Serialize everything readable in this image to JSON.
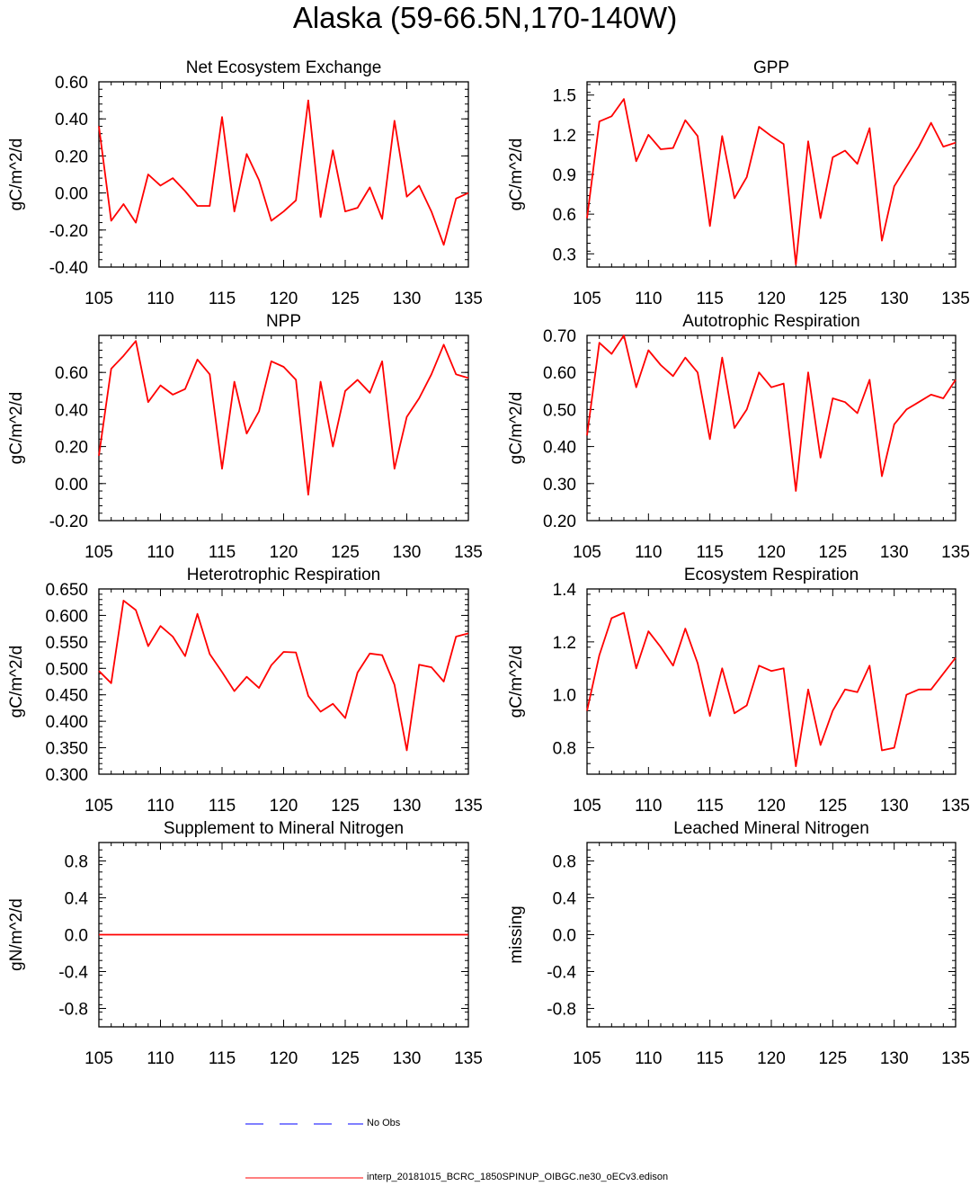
{
  "title": "Alaska (59-66.5N,170-140W)",
  "colors": {
    "model": "#ff0000",
    "obs": "#0000ff",
    "axis": "#000000"
  },
  "legend": {
    "obs_label": "No Obs",
    "model_label": "interp_20181015_BCRC_1850SPINUP_OIBGC.ne30_oECv3.edison"
  },
  "chart_data": [
    {
      "type": "line",
      "title": "Net Ecosystem Exchange",
      "ylabel": "gC/m^2/d",
      "xlim": [
        105,
        135
      ],
      "ylim": [
        -0.4,
        0.6
      ],
      "yticks": [
        -0.4,
        -0.2,
        0.0,
        0.2,
        0.4,
        0.6
      ],
      "ytick_labels": [
        "-0.40",
        "-0.20",
        "0.00",
        "0.20",
        "0.40",
        "0.60"
      ],
      "xticks": [
        105,
        110,
        115,
        120,
        125,
        130,
        135
      ],
      "xtick_labels": [
        "105",
        "110",
        "115",
        "120",
        "125",
        "130",
        "135"
      ],
      "x": [
        105,
        106,
        107,
        108,
        109,
        110,
        111,
        112,
        113,
        114,
        115,
        116,
        117,
        118,
        119,
        120,
        121,
        122,
        123,
        124,
        125,
        126,
        127,
        128,
        129,
        130,
        131,
        132,
        133,
        134,
        135
      ],
      "series": [
        {
          "name": "interp_20181015_BCRC_1850SPINUP_OIBGC.ne30_oECv3.edison",
          "values": [
            0.36,
            -0.15,
            -0.06,
            -0.16,
            0.1,
            0.04,
            0.08,
            0.01,
            -0.07,
            -0.07,
            0.41,
            -0.1,
            0.21,
            0.07,
            -0.15,
            -0.1,
            -0.04,
            0.5,
            -0.13,
            0.23,
            -0.1,
            -0.08,
            0.03,
            -0.14,
            0.39,
            -0.02,
            0.04,
            -0.1,
            -0.28,
            -0.03,
            0.0
          ]
        }
      ]
    },
    {
      "type": "line",
      "title": "GPP",
      "ylabel": "gC/m^2/d",
      "xlim": [
        105,
        135
      ],
      "ylim": [
        0.2,
        1.6
      ],
      "yticks": [
        0.3,
        0.6,
        0.9,
        1.2,
        1.5
      ],
      "ytick_labels": [
        "0.3",
        "0.6",
        "0.9",
        "1.2",
        "1.5"
      ],
      "xticks": [
        105,
        110,
        115,
        120,
        125,
        130,
        135
      ],
      "xtick_labels": [
        "105",
        "110",
        "115",
        "120",
        "125",
        "130",
        "135"
      ],
      "x": [
        105,
        106,
        107,
        108,
        109,
        110,
        111,
        112,
        113,
        114,
        115,
        116,
        117,
        118,
        119,
        120,
        121,
        122,
        123,
        124,
        125,
        126,
        127,
        128,
        129,
        130,
        131,
        132,
        133,
        134,
        135
      ],
      "series": [
        {
          "name": "interp_20181015_BCRC_1850SPINUP_OIBGC.ne30_oECv3.edison",
          "values": [
            0.57,
            1.3,
            1.34,
            1.47,
            1.0,
            1.2,
            1.09,
            1.1,
            1.31,
            1.19,
            0.51,
            1.19,
            0.72,
            0.88,
            1.26,
            1.19,
            1.13,
            0.22,
            1.15,
            0.57,
            1.03,
            1.08,
            0.98,
            1.25,
            0.4,
            0.81,
            0.96,
            1.11,
            1.29,
            1.11,
            1.14
          ]
        }
      ]
    },
    {
      "type": "line",
      "title": "NPP",
      "ylabel": "gC/m^2/d",
      "xlim": [
        105,
        135
      ],
      "ylim": [
        -0.2,
        0.8
      ],
      "yticks": [
        -0.2,
        0.0,
        0.2,
        0.4,
        0.6
      ],
      "ytick_labels": [
        "-0.20",
        "0.00",
        "0.20",
        "0.40",
        "0.60"
      ],
      "xticks": [
        105,
        110,
        115,
        120,
        125,
        130,
        135
      ],
      "xtick_labels": [
        "105",
        "110",
        "115",
        "120",
        "125",
        "130",
        "135"
      ],
      "x": [
        105,
        106,
        107,
        108,
        109,
        110,
        111,
        112,
        113,
        114,
        115,
        116,
        117,
        118,
        119,
        120,
        121,
        122,
        123,
        124,
        125,
        126,
        127,
        128,
        129,
        130,
        131,
        132,
        133,
        134,
        135
      ],
      "series": [
        {
          "name": "interp_20181015_BCRC_1850SPINUP_OIBGC.ne30_oECv3.edison",
          "values": [
            0.15,
            0.62,
            0.69,
            0.77,
            0.44,
            0.53,
            0.48,
            0.51,
            0.67,
            0.59,
            0.08,
            0.55,
            0.27,
            0.39,
            0.66,
            0.63,
            0.56,
            -0.06,
            0.55,
            0.2,
            0.5,
            0.56,
            0.49,
            0.66,
            0.08,
            0.36,
            0.46,
            0.59,
            0.75,
            0.59,
            0.57
          ]
        }
      ]
    },
    {
      "type": "line",
      "title": "Autotrophic Respiration",
      "ylabel": "gC/m^2/d",
      "xlim": [
        105,
        135
      ],
      "ylim": [
        0.2,
        0.7
      ],
      "yticks": [
        0.2,
        0.3,
        0.4,
        0.5,
        0.6,
        0.7
      ],
      "ytick_labels": [
        "0.20",
        "0.30",
        "0.40",
        "0.50",
        "0.60",
        "0.70"
      ],
      "xticks": [
        105,
        110,
        115,
        120,
        125,
        130,
        135
      ],
      "xtick_labels": [
        "105",
        "110",
        "115",
        "120",
        "125",
        "130",
        "135"
      ],
      "x": [
        105,
        106,
        107,
        108,
        109,
        110,
        111,
        112,
        113,
        114,
        115,
        116,
        117,
        118,
        119,
        120,
        121,
        122,
        123,
        124,
        125,
        126,
        127,
        128,
        129,
        130,
        131,
        132,
        133,
        134,
        135
      ],
      "series": [
        {
          "name": "interp_20181015_BCRC_1850SPINUP_OIBGC.ne30_oECv3.edison",
          "values": [
            0.43,
            0.68,
            0.65,
            0.7,
            0.56,
            0.66,
            0.62,
            0.59,
            0.64,
            0.6,
            0.42,
            0.64,
            0.45,
            0.5,
            0.6,
            0.56,
            0.57,
            0.28,
            0.6,
            0.37,
            0.53,
            0.52,
            0.49,
            0.58,
            0.32,
            0.46,
            0.5,
            0.52,
            0.54,
            0.53,
            0.58
          ]
        }
      ]
    },
    {
      "type": "line",
      "title": "Heterotrophic Respiration",
      "ylabel": "gC/m^2/d",
      "xlim": [
        105,
        135
      ],
      "ylim": [
        0.3,
        0.65
      ],
      "yticks": [
        0.3,
        0.35,
        0.4,
        0.45,
        0.5,
        0.55,
        0.6,
        0.65
      ],
      "ytick_labels": [
        "0.300",
        "0.350",
        "0.400",
        "0.450",
        "0.500",
        "0.550",
        "0.600",
        "0.650"
      ],
      "xticks": [
        105,
        110,
        115,
        120,
        125,
        130,
        135
      ],
      "xtick_labels": [
        "105",
        "110",
        "115",
        "120",
        "125",
        "130",
        "135"
      ],
      "x": [
        105,
        106,
        107,
        108,
        109,
        110,
        111,
        112,
        113,
        114,
        115,
        116,
        117,
        118,
        119,
        120,
        121,
        122,
        123,
        124,
        125,
        126,
        127,
        128,
        129,
        130,
        131,
        132,
        133,
        134,
        135
      ],
      "series": [
        {
          "name": "interp_20181015_BCRC_1850SPINUP_OIBGC.ne30_oECv3.edison",
          "values": [
            0.495,
            0.472,
            0.628,
            0.61,
            0.542,
            0.58,
            0.56,
            0.523,
            0.603,
            0.527,
            0.493,
            0.457,
            0.484,
            0.463,
            0.506,
            0.531,
            0.53,
            0.448,
            0.418,
            0.433,
            0.406,
            0.492,
            0.528,
            0.525,
            0.469,
            0.345,
            0.507,
            0.502,
            0.475,
            0.56,
            0.566
          ]
        }
      ]
    },
    {
      "type": "line",
      "title": "Ecosystem Respiration",
      "ylabel": "gC/m^2/d",
      "xlim": [
        105,
        135
      ],
      "ylim": [
        0.7,
        1.4
      ],
      "yticks": [
        0.8,
        1.0,
        1.2,
        1.4
      ],
      "ytick_labels": [
        "0.8",
        "1.0",
        "1.2",
        "1.4"
      ],
      "xticks": [
        105,
        110,
        115,
        120,
        125,
        130,
        135
      ],
      "xtick_labels": [
        "105",
        "110",
        "115",
        "120",
        "125",
        "130",
        "135"
      ],
      "x": [
        105,
        106,
        107,
        108,
        109,
        110,
        111,
        112,
        113,
        114,
        115,
        116,
        117,
        118,
        119,
        120,
        121,
        122,
        123,
        124,
        125,
        126,
        127,
        128,
        129,
        130,
        131,
        132,
        133,
        134,
        135
      ],
      "series": [
        {
          "name": "interp_20181015_BCRC_1850SPINUP_OIBGC.ne30_oECv3.edison",
          "values": [
            0.94,
            1.15,
            1.29,
            1.31,
            1.1,
            1.24,
            1.18,
            1.11,
            1.25,
            1.12,
            0.92,
            1.1,
            0.93,
            0.96,
            1.11,
            1.09,
            1.1,
            0.73,
            1.02,
            0.81,
            0.94,
            1.02,
            1.01,
            1.11,
            0.79,
            0.8,
            1.0,
            1.02,
            1.02,
            1.08,
            1.14
          ]
        }
      ]
    },
    {
      "type": "line",
      "title": "Supplement to Mineral Nitrogen",
      "ylabel": "gN/m^2/d",
      "xlim": [
        105,
        135
      ],
      "ylim": [
        -1.0,
        1.0
      ],
      "yticks": [
        -0.8,
        -0.4,
        0.0,
        0.4,
        0.8
      ],
      "ytick_labels": [
        "-0.8",
        "-0.4",
        "0.0",
        "0.4",
        "0.8"
      ],
      "xticks": [
        105,
        110,
        115,
        120,
        125,
        130,
        135
      ],
      "xtick_labels": [
        "105",
        "110",
        "115",
        "120",
        "125",
        "130",
        "135"
      ],
      "x": [
        105,
        106,
        107,
        108,
        109,
        110,
        111,
        112,
        113,
        114,
        115,
        116,
        117,
        118,
        119,
        120,
        121,
        122,
        123,
        124,
        125,
        126,
        127,
        128,
        129,
        130,
        131,
        132,
        133,
        134,
        135
      ],
      "series": [
        {
          "name": "interp_20181015_BCRC_1850SPINUP_OIBGC.ne30_oECv3.edison",
          "values": [
            0,
            0,
            0,
            0,
            0,
            0,
            0,
            0,
            0,
            0,
            0,
            0,
            0,
            0,
            0,
            0,
            0,
            0,
            0,
            0,
            0,
            0,
            0,
            0,
            0,
            0,
            0,
            0,
            0,
            0,
            0
          ]
        }
      ]
    },
    {
      "type": "line",
      "title": "Leached Mineral Nitrogen",
      "ylabel": "missing",
      "xlim": [
        105,
        135
      ],
      "ylim": [
        -1.0,
        1.0
      ],
      "yticks": [
        -0.8,
        -0.4,
        0.0,
        0.4,
        0.8
      ],
      "ytick_labels": [
        "-0.8",
        "-0.4",
        "0.0",
        "0.4",
        "0.8"
      ],
      "xticks": [
        105,
        110,
        115,
        120,
        125,
        130,
        135
      ],
      "xtick_labels": [
        "105",
        "110",
        "115",
        "120",
        "125",
        "130",
        "135"
      ],
      "x": [],
      "series": []
    }
  ]
}
